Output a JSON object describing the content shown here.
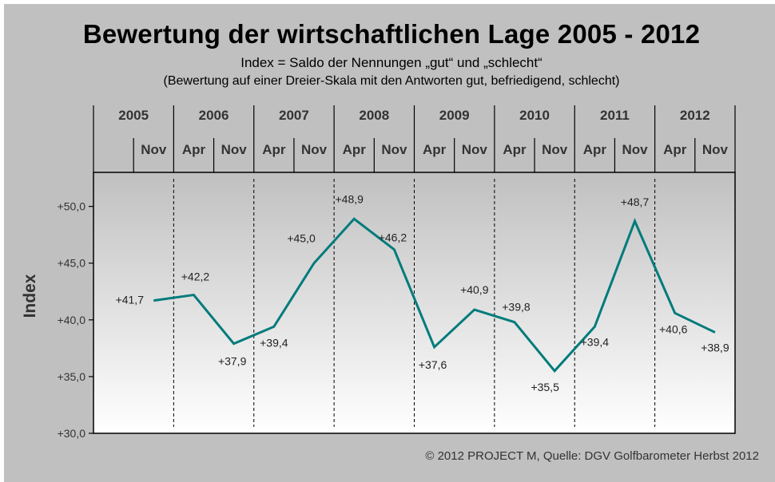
{
  "chart_data": {
    "type": "line",
    "title": "Bewertung der wirtschaftlichen Lage 2005 - 2012",
    "subtitle": "Index = Saldo der Nennungen „gut“ und „schlecht“",
    "subtitle2": "(Bewertung auf einer Dreier-Skala mit den Antworten gut, befriedigend, schlecht)",
    "xlabel": "",
    "ylabel": "Index",
    "ylim": [
      30,
      53
    ],
    "yticks": [
      50,
      45,
      40,
      35,
      30
    ],
    "ytick_labels": [
      "+50,0",
      "+45,0",
      "+40,0",
      "+35,0",
      "+30,0"
    ],
    "years": [
      "2005",
      "2006",
      "2007",
      "2008",
      "2009",
      "2010",
      "2011",
      "2012"
    ],
    "categories": [
      "Nov 2005",
      "Apr 2006",
      "Nov 2006",
      "Apr 2007",
      "Nov 2007",
      "Apr 2008",
      "Nov 2008",
      "Apr 2009",
      "Nov 2009",
      "Apr 2010",
      "Nov 2010",
      "Apr 2011",
      "Nov 2011",
      "Apr 2012",
      "Nov 2012"
    ],
    "month_labels": [
      "Nov",
      "Apr",
      "Nov",
      "Apr",
      "Nov",
      "Apr",
      "Nov",
      "Apr",
      "Nov",
      "Apr",
      "Nov",
      "Apr",
      "Nov",
      "Apr",
      "Nov"
    ],
    "series": [
      {
        "name": "Index",
        "color": "#007b7b",
        "values": [
          41.7,
          42.2,
          37.9,
          39.4,
          45.0,
          48.9,
          46.2,
          37.6,
          40.9,
          39.8,
          35.5,
          39.4,
          48.7,
          40.6,
          38.9
        ],
        "labels": [
          "+41,7",
          "+42,2",
          "+37,9",
          "+39,4",
          "+45,0",
          "+48,9",
          "+46,2",
          "+37,6",
          "+40,9",
          "+39,8",
          "+35,5",
          "+39,4",
          "+48,7",
          "+40,6",
          "+38,9"
        ]
      }
    ],
    "grid": false,
    "legend": "none"
  },
  "footer": "© 2012 PROJECT M, Quelle: DGV Golfbarometer Herbst 2012"
}
